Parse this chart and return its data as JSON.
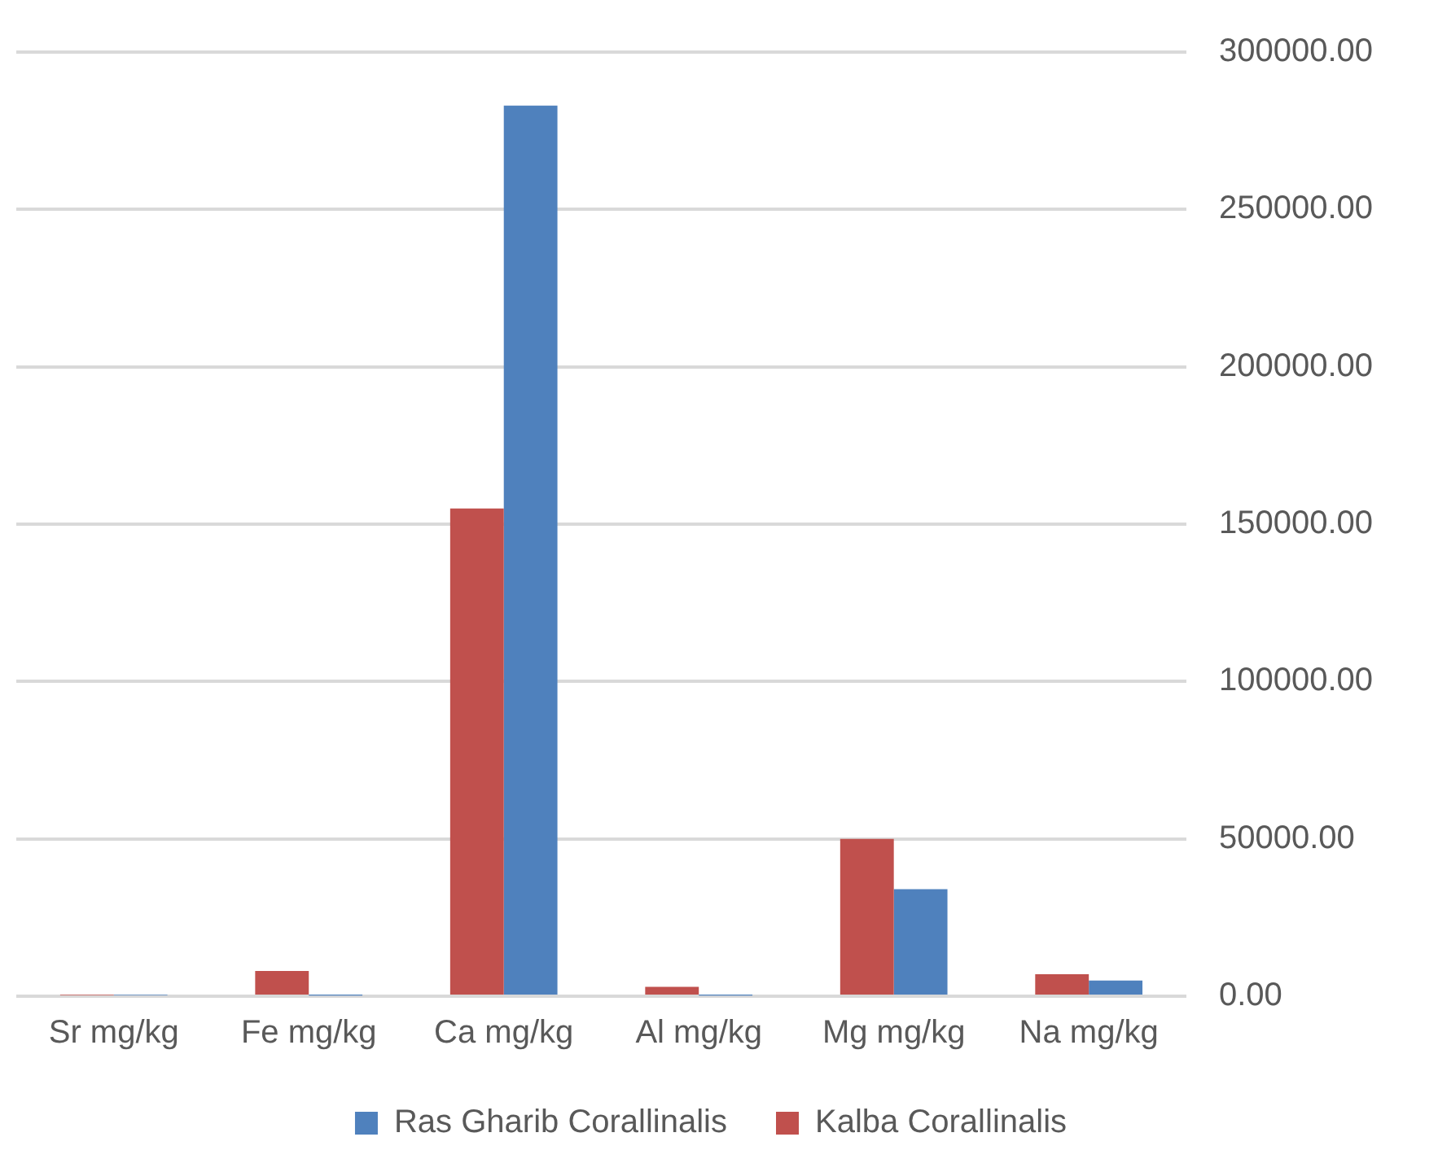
{
  "chart_data": {
    "type": "bar",
    "categories": [
      "Sr mg/kg",
      "Fe mg/kg",
      "Ca mg/kg",
      "Al mg/kg",
      "Mg mg/kg",
      "Na mg/kg"
    ],
    "series": [
      {
        "name": "Kalba Corallinalis",
        "color": "#c0504d",
        "values": [
          300,
          8000,
          155000,
          3000,
          50000,
          7000
        ]
      },
      {
        "name": "Ras Gharib Corallinalis",
        "color": "#4f81bd",
        "values": [
          300,
          200,
          283000,
          200,
          34000,
          5000
        ]
      }
    ],
    "ylim": [
      0,
      300000
    ],
    "yticks": [
      {
        "value": 0,
        "label": "0.00"
      },
      {
        "value": 50000,
        "label": "50000.00"
      },
      {
        "value": 100000,
        "label": "100000.00"
      },
      {
        "value": 150000,
        "label": "150000.00"
      },
      {
        "value": 200000,
        "label": "200000.00"
      },
      {
        "value": 250000,
        "label": "250000.00"
      },
      {
        "value": 300000,
        "label": "300000.00"
      }
    ],
    "grid": "y",
    "legend": "bottom"
  }
}
